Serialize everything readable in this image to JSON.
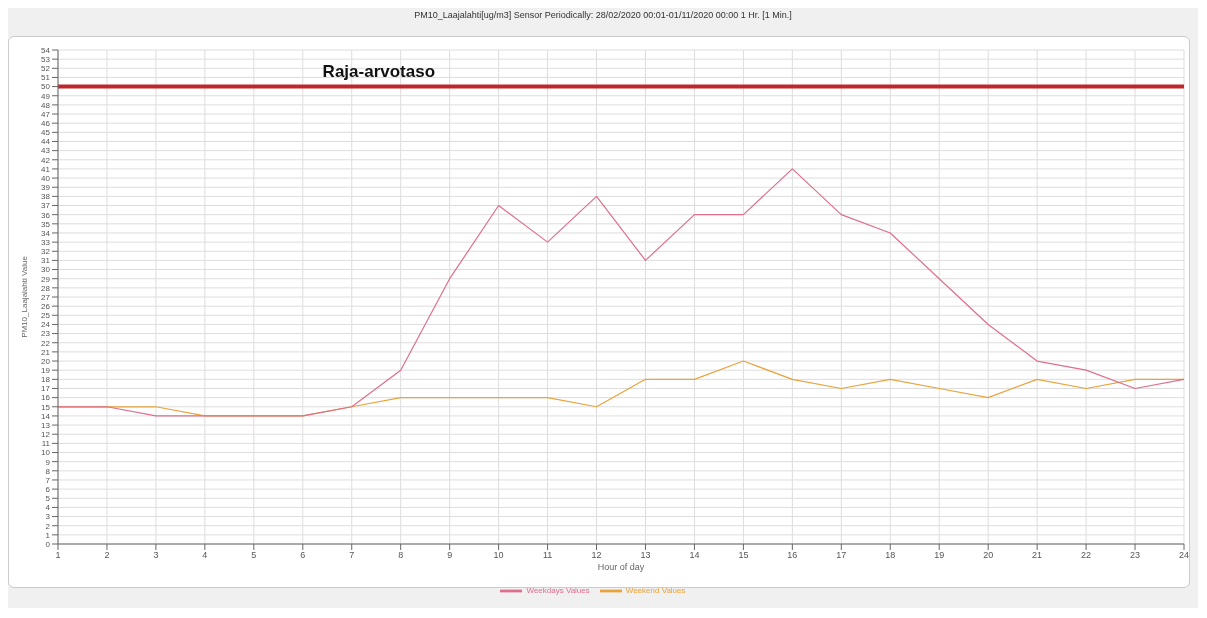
{
  "chart_data": {
    "type": "line",
    "title": "PM10_Laajalahti[ug/m3] Sensor  Periodically: 28/02/2020 00:01-01/11/2020 00:00 1 Hr. [1 Min.]",
    "xlabel": "Hour of day",
    "ylabel": "PM10_Laajalahti Value",
    "x": [
      1,
      2,
      3,
      4,
      5,
      6,
      7,
      8,
      9,
      10,
      11,
      12,
      13,
      14,
      15,
      16,
      17,
      18,
      19,
      20,
      21,
      22,
      23,
      24
    ],
    "series": [
      {
        "name": "Weekend Values",
        "color": "#e8a33c",
        "values": [
          15,
          15,
          15,
          14,
          14,
          14,
          15,
          16,
          16,
          16,
          16,
          15,
          18,
          18,
          20,
          18,
          17,
          18,
          17,
          16,
          18,
          17,
          18,
          18
        ]
      },
      {
        "name": "Weekdays Values",
        "color": "#de6f8c",
        "values": [
          15,
          15,
          14,
          14,
          14,
          14,
          15,
          19,
          29,
          37,
          33,
          38,
          31,
          36,
          36,
          41,
          36,
          34,
          29,
          24,
          20,
          19,
          17,
          18
        ]
      }
    ],
    "xlim": [
      1,
      24
    ],
    "xticks": [
      1,
      2,
      3,
      4,
      5,
      6,
      7,
      8,
      9,
      10,
      11,
      12,
      13,
      14,
      15,
      16,
      17,
      18,
      19,
      20,
      21,
      22,
      23,
      24
    ],
    "ylim": [
      0,
      54
    ],
    "yticks": [
      0,
      1,
      2,
      3,
      4,
      5,
      6,
      7,
      8,
      9,
      10,
      11,
      12,
      13,
      14,
      15,
      16,
      17,
      18,
      19,
      20,
      21,
      22,
      23,
      24,
      25,
      26,
      27,
      28,
      29,
      30,
      31,
      32,
      33,
      34,
      35,
      36,
      37,
      38,
      39,
      40,
      41,
      42,
      43,
      44,
      45,
      46,
      47,
      48,
      49,
      50,
      51,
      52,
      53,
      54
    ],
    "ref_lines": [
      {
        "axis": "y",
        "value": 50,
        "label": "Raja-arvotaso",
        "color": "#c0272d"
      }
    ],
    "grid": true,
    "legend": "bottom",
    "marker": "none",
    "line_style": "solid"
  }
}
